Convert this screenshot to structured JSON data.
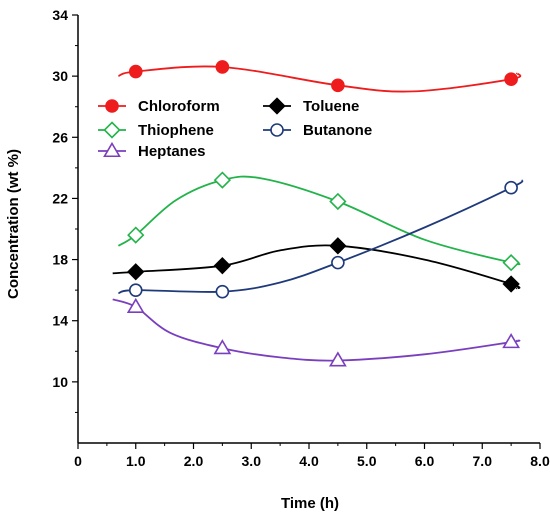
{
  "chart_data": {
    "type": "line",
    "xlabel": "Time (h)",
    "ylabel": "Concentration (wt %)",
    "xlim": [
      0,
      8
    ],
    "ylim": [
      6,
      34
    ],
    "x_ticks": [
      {
        "value": 0,
        "label": "0"
      },
      {
        "value": 1,
        "label": "1.0"
      },
      {
        "value": 2,
        "label": "2.0"
      },
      {
        "value": 3,
        "label": "3.0"
      },
      {
        "value": 4,
        "label": "4.0"
      },
      {
        "value": 5,
        "label": "5.0"
      },
      {
        "value": 6,
        "label": "6.0"
      },
      {
        "value": 7,
        "label": "7.0"
      },
      {
        "value": 8,
        "label": "8.0"
      }
    ],
    "y_ticks": [
      {
        "value": 10,
        "label": "10"
      },
      {
        "value": 14,
        "label": "14"
      },
      {
        "value": 18,
        "label": "18"
      },
      {
        "value": 22,
        "label": "22"
      },
      {
        "value": 26,
        "label": "26"
      },
      {
        "value": 30,
        "label": "30"
      },
      {
        "value": 34,
        "label": "34"
      }
    ],
    "grid": false,
    "legend_position": "top-left",
    "series": [
      {
        "name": "Chloroform",
        "color": "#ee1c1c",
        "marker": "circle-filled",
        "x": [
          1.0,
          2.5,
          4.5,
          7.5
        ],
        "y": [
          30.3,
          30.6,
          29.4,
          29.8
        ],
        "curve": [
          [
            0.7,
            30.0
          ],
          [
            1.0,
            30.3
          ],
          [
            2.5,
            30.6
          ],
          [
            4.5,
            29.4
          ],
          [
            5.8,
            29.0
          ],
          [
            7.5,
            29.8
          ],
          [
            7.6,
            30.2
          ]
        ]
      },
      {
        "name": "Thiophene",
        "color": "#22b34a",
        "marker": "diamond-open",
        "x": [
          1.0,
          2.5,
          4.5,
          7.5
        ],
        "y": [
          19.6,
          23.2,
          21.8,
          17.8
        ],
        "curve": [
          [
            0.7,
            18.9
          ],
          [
            1.0,
            19.6
          ],
          [
            1.7,
            21.9
          ],
          [
            2.5,
            23.2
          ],
          [
            3.2,
            23.3
          ],
          [
            4.5,
            21.8
          ],
          [
            6.0,
            19.3
          ],
          [
            7.5,
            17.8
          ],
          [
            7.6,
            17.8
          ]
        ]
      },
      {
        "name": "Heptanes",
        "color": "#7a3fbf",
        "marker": "triangle-open",
        "x": [
          1.0,
          2.5,
          4.5,
          7.5
        ],
        "y": [
          14.9,
          12.2,
          11.4,
          12.6
        ],
        "curve": [
          [
            0.6,
            15.4
          ],
          [
            1.0,
            14.9
          ],
          [
            1.6,
            13.2
          ],
          [
            2.5,
            12.2
          ],
          [
            3.5,
            11.6
          ],
          [
            4.5,
            11.4
          ],
          [
            6.0,
            11.8
          ],
          [
            7.5,
            12.6
          ],
          [
            7.6,
            12.7
          ]
        ]
      },
      {
        "name": "Toluene",
        "color": "#000000",
        "marker": "diamond-filled",
        "x": [
          1.0,
          2.5,
          4.5,
          7.5
        ],
        "y": [
          17.2,
          17.6,
          18.9,
          16.4
        ],
        "curve": [
          [
            0.6,
            17.1
          ],
          [
            1.0,
            17.2
          ],
          [
            2.5,
            17.6
          ],
          [
            3.5,
            18.6
          ],
          [
            4.5,
            18.9
          ],
          [
            6.0,
            18.0
          ],
          [
            7.5,
            16.4
          ],
          [
            7.6,
            16.1
          ]
        ]
      },
      {
        "name": "Butanone",
        "color": "#1f3a7a",
        "marker": "circle-open",
        "x": [
          1.0,
          2.5,
          4.5,
          7.5
        ],
        "y": [
          16.0,
          15.9,
          17.8,
          22.7
        ],
        "curve": [
          [
            0.7,
            15.8
          ],
          [
            1.0,
            16.0
          ],
          [
            2.5,
            15.9
          ],
          [
            3.5,
            16.5
          ],
          [
            4.5,
            17.8
          ],
          [
            6.0,
            20.1
          ],
          [
            7.5,
            22.7
          ],
          [
            7.7,
            23.2
          ]
        ]
      }
    ],
    "legend": [
      {
        "series": 0,
        "col": 0,
        "row": 0
      },
      {
        "series": 3,
        "col": 1,
        "row": 0
      },
      {
        "series": 1,
        "col": 0,
        "row": 1
      },
      {
        "series": 4,
        "col": 1,
        "row": 1
      },
      {
        "series": 2,
        "col": 0,
        "row": 2
      }
    ]
  }
}
